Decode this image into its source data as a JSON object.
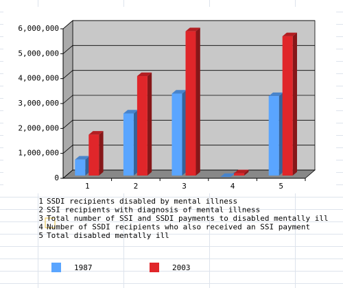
{
  "chart_data": {
    "type": "bar3d",
    "categories": [
      "1",
      "2",
      "3",
      "4",
      "5"
    ],
    "category_descriptions": [
      "SSDI recipients disabled by mental illness",
      "SSI recipients with diagnosis of mental illness",
      "Total number of SSI and SSDI payments to disabled mentally ill",
      "Number of SSDI recipients who also received an SSI payment",
      "Total disabled mentally ill"
    ],
    "series": [
      {
        "name": "1987",
        "color": "#5aa5ff",
        "values": [
          750000,
          2600000,
          3400000,
          50000,
          3300000
        ]
      },
      {
        "name": "2003",
        "color": "#e0262a",
        "values": [
          1750000,
          4100000,
          5900000,
          200000,
          5700000
        ]
      }
    ],
    "ylim": [
      0,
      6000000
    ],
    "yticks": [
      0,
      {
        "value": 1000000,
        "label": "1,000,000"
      },
      {
        "value": 2000000,
        "label": "2,000,000"
      },
      {
        "value": 3000000,
        "label": "3,000,000"
      },
      {
        "value": 4000000,
        "label": "4,000,000"
      },
      {
        "value": 5000000,
        "label": "5,000,000"
      },
      {
        "value": 6000000,
        "label": "6,000,000"
      }
    ],
    "grid": true
  }
}
